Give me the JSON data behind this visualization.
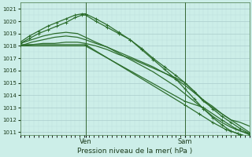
{
  "bg_color": "#cceee8",
  "grid_color_major": "#aacccc",
  "grid_color_minor": "#bbdddd",
  "line_color": "#2d6e2d",
  "ylabel_text": "Pression niveau de la mer( hPa )",
  "ylim": [
    1010.8,
    1021.5
  ],
  "yticks": [
    1011,
    1012,
    1013,
    1014,
    1015,
    1016,
    1017,
    1018,
    1019,
    1020,
    1021
  ],
  "vline_positions": [
    0.285,
    0.72
  ],
  "vline_labels": [
    "Ven",
    "Sam"
  ],
  "xlabel_fontsize": 6.5,
  "series": {
    "flat_then_down": {
      "x": [
        0,
        0.05,
        0.1,
        0.15,
        0.2,
        0.25,
        0.285,
        0.33,
        0.38,
        0.43,
        0.48,
        0.53,
        0.58,
        0.63,
        0.68,
        0.72,
        0.76,
        0.8,
        0.84,
        0.88,
        0.92,
        0.96,
        1.0
      ],
      "y": [
        1018.0,
        1018.1,
        1018.2,
        1018.2,
        1018.3,
        1018.3,
        1018.2,
        1018.0,
        1017.7,
        1017.3,
        1017.0,
        1016.6,
        1016.2,
        1015.8,
        1015.4,
        1015.0,
        1014.3,
        1013.5,
        1013.0,
        1012.5,
        1012.0,
        1011.8,
        1011.5
      ],
      "marker": false,
      "lw": 0.9
    },
    "slight_rise": {
      "x": [
        0,
        0.05,
        0.1,
        0.15,
        0.2,
        0.25,
        0.285,
        0.33,
        0.38,
        0.43,
        0.48,
        0.53,
        0.58,
        0.63,
        0.68,
        0.72,
        0.76,
        0.8,
        0.84,
        0.88,
        0.92,
        0.96,
        1.0
      ],
      "y": [
        1018.0,
        1018.3,
        1018.5,
        1018.7,
        1018.8,
        1018.7,
        1018.5,
        1018.2,
        1017.9,
        1017.5,
        1017.1,
        1016.7,
        1016.3,
        1015.8,
        1015.3,
        1014.8,
        1014.2,
        1013.6,
        1013.1,
        1012.5,
        1012.0,
        1011.5,
        1011.0
      ],
      "marker": false,
      "lw": 0.9
    },
    "medium_rise": {
      "x": [
        0,
        0.05,
        0.1,
        0.15,
        0.2,
        0.25,
        0.285,
        0.33,
        0.38,
        0.43,
        0.48,
        0.53,
        0.58,
        0.63,
        0.68,
        0.72,
        0.76,
        0.8,
        0.84,
        0.88,
        0.92,
        0.96,
        1.0
      ],
      "y": [
        1018.2,
        1018.5,
        1018.8,
        1019.0,
        1019.1,
        1019.0,
        1018.7,
        1018.3,
        1017.9,
        1017.4,
        1016.9,
        1016.4,
        1015.9,
        1015.3,
        1014.7,
        1014.1,
        1013.5,
        1012.9,
        1012.3,
        1011.8,
        1011.4,
        1011.1,
        1010.9
      ],
      "marker": false,
      "lw": 0.9
    },
    "high_peak_marker": {
      "x": [
        0,
        0.04,
        0.08,
        0.12,
        0.16,
        0.2,
        0.24,
        0.27,
        0.285,
        0.33,
        0.38,
        0.43,
        0.48,
        0.53,
        0.58,
        0.63,
        0.68,
        0.72,
        0.76,
        0.8,
        0.84,
        0.88,
        0.92,
        0.96,
        1.0
      ],
      "y": [
        1018.2,
        1018.6,
        1019.0,
        1019.3,
        1019.6,
        1019.9,
        1020.3,
        1020.5,
        1020.5,
        1020.0,
        1019.5,
        1019.0,
        1018.5,
        1017.8,
        1017.0,
        1016.3,
        1015.6,
        1015.0,
        1014.3,
        1013.6,
        1012.9,
        1012.3,
        1011.8,
        1011.3,
        1010.9
      ],
      "marker": true,
      "lw": 0.9
    },
    "highest_peak_marker": {
      "x": [
        0,
        0.04,
        0.08,
        0.12,
        0.16,
        0.2,
        0.24,
        0.27,
        0.285,
        0.33,
        0.38,
        0.43,
        0.48,
        0.53,
        0.58,
        0.63,
        0.68,
        0.72,
        0.76,
        0.8,
        0.84,
        0.88,
        0.92,
        0.96,
        1.0
      ],
      "y": [
        1018.3,
        1018.8,
        1019.2,
        1019.6,
        1019.9,
        1020.2,
        1020.5,
        1020.6,
        1020.6,
        1020.2,
        1019.7,
        1019.1,
        1018.5,
        1017.7,
        1016.9,
        1016.1,
        1015.3,
        1014.5,
        1013.7,
        1012.9,
        1012.2,
        1011.6,
        1011.1,
        1010.8,
        1010.6
      ],
      "marker": true,
      "lw": 0.9
    },
    "low_drop_marker": {
      "x": [
        0,
        0.285,
        0.72,
        0.8,
        0.88,
        0.94,
        1.0
      ],
      "y": [
        1018.0,
        1018.0,
        1013.5,
        1013.0,
        1012.0,
        1011.3,
        1010.8
      ],
      "marker": true,
      "lw": 0.9
    },
    "steeper_drop_marker": {
      "x": [
        0,
        0.285,
        0.72,
        0.78,
        0.84,
        0.9,
        0.95,
        1.0
      ],
      "y": [
        1018.1,
        1018.1,
        1013.2,
        1012.5,
        1011.8,
        1011.2,
        1010.9,
        1010.6
      ],
      "marker": true,
      "lw": 0.9
    }
  }
}
